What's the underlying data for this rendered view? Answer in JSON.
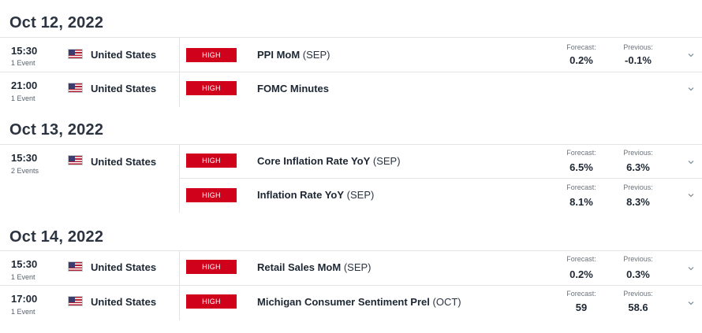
{
  "labels": {
    "forecast": "Forecast:",
    "previous": "Previous:"
  },
  "colors": {
    "impact_high": "#d0021b",
    "text": "#1d2733",
    "divider": "#e2e5e8"
  },
  "days": [
    {
      "date": "Oct 12, 2022",
      "rows": [
        {
          "time": "15:30",
          "events": "1 Event",
          "country": "United States",
          "impact": "HIGH",
          "name": "PPI MoM",
          "period": "(SEP)",
          "forecast": "0.2%",
          "previous": "-0.1%"
        },
        {
          "time": "21:00",
          "events": "1 Event",
          "country": "United States",
          "impact": "HIGH",
          "name": "FOMC Minutes",
          "period": "",
          "forecast": "",
          "previous": ""
        }
      ]
    },
    {
      "date": "Oct 13, 2022",
      "rows": [
        {
          "time": "15:30",
          "events": "2 Events",
          "country": "United States",
          "impact": "HIGH",
          "name": "Core Inflation Rate YoY",
          "period": "(SEP)",
          "forecast": "6.5%",
          "previous": "6.3%"
        },
        {
          "impact": "HIGH",
          "name": "Inflation Rate YoY",
          "period": "(SEP)",
          "forecast": "8.1%",
          "previous": "8.3%"
        }
      ]
    },
    {
      "date": "Oct 14, 2022",
      "rows": [
        {
          "time": "15:30",
          "events": "1 Event",
          "country": "United States",
          "impact": "HIGH",
          "name": "Retail Sales MoM",
          "period": "(SEP)",
          "forecast": "0.2%",
          "previous": "0.3%"
        },
        {
          "time": "17:00",
          "events": "1 Event",
          "country": "United States",
          "impact": "HIGH",
          "name": "Michigan Consumer Sentiment Prel",
          "period": "(OCT)",
          "forecast": "59",
          "previous": "58.6"
        }
      ]
    }
  ]
}
